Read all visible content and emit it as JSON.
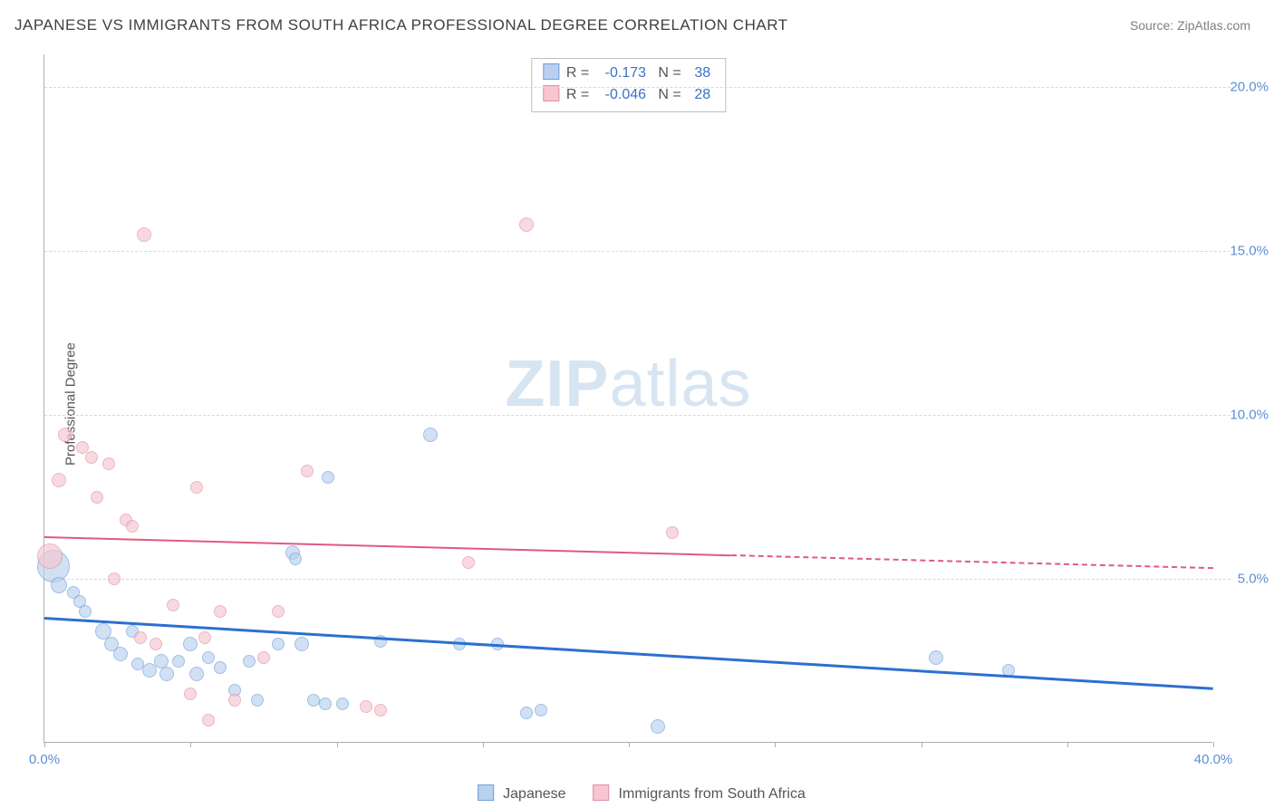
{
  "title": "JAPANESE VS IMMIGRANTS FROM SOUTH AFRICA PROFESSIONAL DEGREE CORRELATION CHART",
  "source_prefix": "Source: ",
  "source_name": "ZipAtlas.com",
  "ylabel": "Professional Degree",
  "watermark_bold": "ZIP",
  "watermark_rest": "atlas",
  "chart": {
    "type": "scatter",
    "background_color": "#ffffff",
    "grid_color": "#d8d8d8",
    "axis_color": "#b0b0b0",
    "tick_label_color": "#5b8fd6",
    "xlim": [
      0,
      40
    ],
    "ylim": [
      0,
      21
    ],
    "xticks": [
      0,
      5,
      10,
      15,
      20,
      25,
      30,
      35,
      40
    ],
    "xtick_labels": {
      "0": "0.0%",
      "40": "40.0%"
    },
    "yticks": [
      5,
      10,
      15,
      20
    ],
    "ytick_labels": {
      "5": "5.0%",
      "10": "10.0%",
      "15": "15.0%",
      "20": "20.0%"
    },
    "title_fontsize": 17,
    "label_fontsize": 15,
    "tick_fontsize": 15
  },
  "series": [
    {
      "name": "Japanese",
      "fill": "#b9d0ee",
      "stroke": "#6f9fde",
      "fill_opacity": 0.65,
      "R": "-0.173",
      "N": "38",
      "trend": {
        "x0": 0,
        "y0": 3.85,
        "x1": 40,
        "y1": 1.7,
        "solid_until_x": 40,
        "color": "#2d6fd0",
        "width": 2.5
      },
      "points": [
        {
          "x": 0.3,
          "y": 5.4,
          "r": 18
        },
        {
          "x": 0.5,
          "y": 4.8,
          "r": 9
        },
        {
          "x": 1.0,
          "y": 4.6,
          "r": 7
        },
        {
          "x": 1.2,
          "y": 4.3,
          "r": 7
        },
        {
          "x": 1.4,
          "y": 4.0,
          "r": 7
        },
        {
          "x": 2.0,
          "y": 3.4,
          "r": 9
        },
        {
          "x": 2.3,
          "y": 3.0,
          "r": 8
        },
        {
          "x": 2.6,
          "y": 2.7,
          "r": 8
        },
        {
          "x": 3.0,
          "y": 3.4,
          "r": 7
        },
        {
          "x": 3.2,
          "y": 2.4,
          "r": 7
        },
        {
          "x": 3.6,
          "y": 2.2,
          "r": 8
        },
        {
          "x": 4.0,
          "y": 2.5,
          "r": 8
        },
        {
          "x": 4.2,
          "y": 2.1,
          "r": 8
        },
        {
          "x": 4.6,
          "y": 2.5,
          "r": 7
        },
        {
          "x": 5.0,
          "y": 3.0,
          "r": 8
        },
        {
          "x": 5.2,
          "y": 2.1,
          "r": 8
        },
        {
          "x": 5.6,
          "y": 2.6,
          "r": 7
        },
        {
          "x": 6.0,
          "y": 2.3,
          "r": 7
        },
        {
          "x": 6.5,
          "y": 1.6,
          "r": 7
        },
        {
          "x": 7.0,
          "y": 2.5,
          "r": 7
        },
        {
          "x": 7.3,
          "y": 1.3,
          "r": 7
        },
        {
          "x": 8.0,
          "y": 3.0,
          "r": 7
        },
        {
          "x": 8.5,
          "y": 5.8,
          "r": 8
        },
        {
          "x": 8.6,
          "y": 5.6,
          "r": 7
        },
        {
          "x": 8.8,
          "y": 3.0,
          "r": 8
        },
        {
          "x": 9.2,
          "y": 1.3,
          "r": 7
        },
        {
          "x": 9.6,
          "y": 1.2,
          "r": 7
        },
        {
          "x": 9.7,
          "y": 8.1,
          "r": 7
        },
        {
          "x": 10.2,
          "y": 1.2,
          "r": 7
        },
        {
          "x": 11.5,
          "y": 3.1,
          "r": 7
        },
        {
          "x": 13.2,
          "y": 9.4,
          "r": 8
        },
        {
          "x": 14.2,
          "y": 3.0,
          "r": 7
        },
        {
          "x": 15.5,
          "y": 3.0,
          "r": 7
        },
        {
          "x": 16.5,
          "y": 0.9,
          "r": 7
        },
        {
          "x": 17.0,
          "y": 1.0,
          "r": 7
        },
        {
          "x": 21.0,
          "y": 0.5,
          "r": 8
        },
        {
          "x": 30.5,
          "y": 2.6,
          "r": 8
        },
        {
          "x": 33.0,
          "y": 2.2,
          "r": 7
        }
      ]
    },
    {
      "name": "Immigrants from South Africa",
      "fill": "#f6c6d1",
      "stroke": "#e18fa5",
      "fill_opacity": 0.65,
      "R": "-0.046",
      "N": "28",
      "trend": {
        "x0": 0,
        "y0": 6.3,
        "x1": 40,
        "y1": 5.35,
        "solid_until_x": 23.5,
        "color": "#e05a7d",
        "width": 2
      },
      "points": [
        {
          "x": 0.2,
          "y": 5.7,
          "r": 14
        },
        {
          "x": 0.5,
          "y": 8.0,
          "r": 8
        },
        {
          "x": 0.7,
          "y": 9.4,
          "r": 8
        },
        {
          "x": 1.3,
          "y": 9.0,
          "r": 7
        },
        {
          "x": 1.6,
          "y": 8.7,
          "r": 7
        },
        {
          "x": 1.8,
          "y": 7.5,
          "r": 7
        },
        {
          "x": 2.2,
          "y": 8.5,
          "r": 7
        },
        {
          "x": 2.4,
          "y": 5.0,
          "r": 7
        },
        {
          "x": 2.8,
          "y": 6.8,
          "r": 7
        },
        {
          "x": 3.0,
          "y": 6.6,
          "r": 7
        },
        {
          "x": 3.3,
          "y": 3.2,
          "r": 7
        },
        {
          "x": 3.4,
          "y": 15.5,
          "r": 8
        },
        {
          "x": 3.8,
          "y": 3.0,
          "r": 7
        },
        {
          "x": 4.4,
          "y": 4.2,
          "r": 7
        },
        {
          "x": 5.0,
          "y": 1.5,
          "r": 7
        },
        {
          "x": 5.2,
          "y": 7.8,
          "r": 7
        },
        {
          "x": 5.5,
          "y": 3.2,
          "r": 7
        },
        {
          "x": 5.6,
          "y": 0.7,
          "r": 7
        },
        {
          "x": 6.0,
          "y": 4.0,
          "r": 7
        },
        {
          "x": 6.5,
          "y": 1.3,
          "r": 7
        },
        {
          "x": 7.5,
          "y": 2.6,
          "r": 7
        },
        {
          "x": 8.0,
          "y": 4.0,
          "r": 7
        },
        {
          "x": 9.0,
          "y": 8.3,
          "r": 7
        },
        {
          "x": 11.0,
          "y": 1.1,
          "r": 7
        },
        {
          "x": 11.5,
          "y": 1.0,
          "r": 7
        },
        {
          "x": 14.5,
          "y": 5.5,
          "r": 7
        },
        {
          "x": 16.5,
          "y": 15.8,
          "r": 8
        },
        {
          "x": 21.5,
          "y": 6.4,
          "r": 7
        }
      ]
    }
  ],
  "legend": {
    "r_label": "R =",
    "n_label": "N ="
  }
}
